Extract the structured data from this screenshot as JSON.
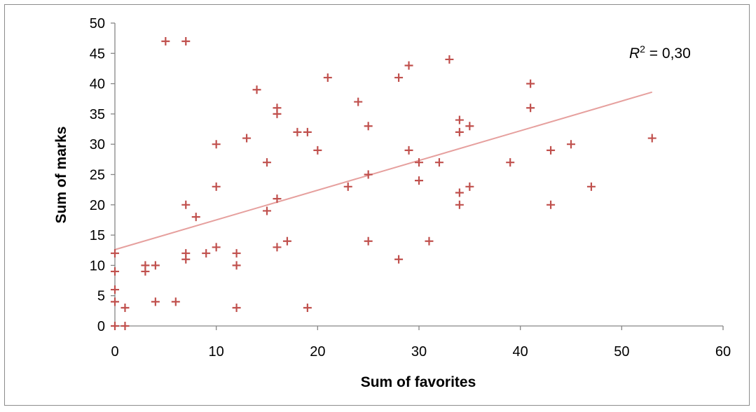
{
  "chart_data": {
    "type": "scatter",
    "title": "",
    "xlabel": "Sum of favorites",
    "ylabel": "Sum of marks",
    "xlim": [
      0,
      60
    ],
    "ylim": [
      0,
      50
    ],
    "xticks": [
      0,
      10,
      20,
      30,
      40,
      50,
      60
    ],
    "yticks": [
      0,
      5,
      10,
      15,
      20,
      25,
      30,
      35,
      40,
      45,
      50
    ],
    "grid": false,
    "legend": "none",
    "marker": "plus",
    "marker_color": "#c0504d",
    "trendline": {
      "type": "linear",
      "color": "#e6a09e",
      "x": [
        0,
        53
      ],
      "y": [
        12.6,
        38.6
      ]
    },
    "annotation": {
      "r_symbol": "R",
      "sup": "2",
      "text": " = 0,30"
    },
    "points": [
      [
        0,
        0
      ],
      [
        0,
        4
      ],
      [
        0,
        6
      ],
      [
        0,
        9
      ],
      [
        0,
        12
      ],
      [
        1,
        0
      ],
      [
        1,
        3
      ],
      [
        3,
        9
      ],
      [
        3,
        10
      ],
      [
        4,
        4
      ],
      [
        4,
        10
      ],
      [
        5,
        47
      ],
      [
        6,
        4
      ],
      [
        7,
        47
      ],
      [
        7,
        20
      ],
      [
        7,
        12
      ],
      [
        7,
        11
      ],
      [
        8,
        18
      ],
      [
        9,
        12
      ],
      [
        10,
        30
      ],
      [
        10,
        23
      ],
      [
        10,
        13
      ],
      [
        12,
        12
      ],
      [
        12,
        10
      ],
      [
        12,
        3
      ],
      [
        13,
        31
      ],
      [
        14,
        39
      ],
      [
        15,
        27
      ],
      [
        15,
        19
      ],
      [
        16,
        36
      ],
      [
        16,
        35
      ],
      [
        16,
        21
      ],
      [
        16,
        13
      ],
      [
        17,
        14
      ],
      [
        18,
        32
      ],
      [
        19,
        32
      ],
      [
        19,
        3
      ],
      [
        20,
        29
      ],
      [
        21,
        41
      ],
      [
        23,
        23
      ],
      [
        24,
        37
      ],
      [
        25,
        33
      ],
      [
        25,
        25
      ],
      [
        25,
        14
      ],
      [
        28,
        41
      ],
      [
        28,
        11
      ],
      [
        29,
        43
      ],
      [
        29,
        29
      ],
      [
        30,
        27
      ],
      [
        30,
        24
      ],
      [
        31,
        14
      ],
      [
        32,
        27
      ],
      [
        33,
        44
      ],
      [
        34,
        34
      ],
      [
        34,
        32
      ],
      [
        34,
        22
      ],
      [
        34,
        20
      ],
      [
        35,
        33
      ],
      [
        35,
        23
      ],
      [
        39,
        27
      ],
      [
        41,
        40
      ],
      [
        41,
        36
      ],
      [
        43,
        29
      ],
      [
        43,
        20
      ],
      [
        45,
        30
      ],
      [
        47,
        23
      ],
      [
        53,
        31
      ]
    ]
  }
}
